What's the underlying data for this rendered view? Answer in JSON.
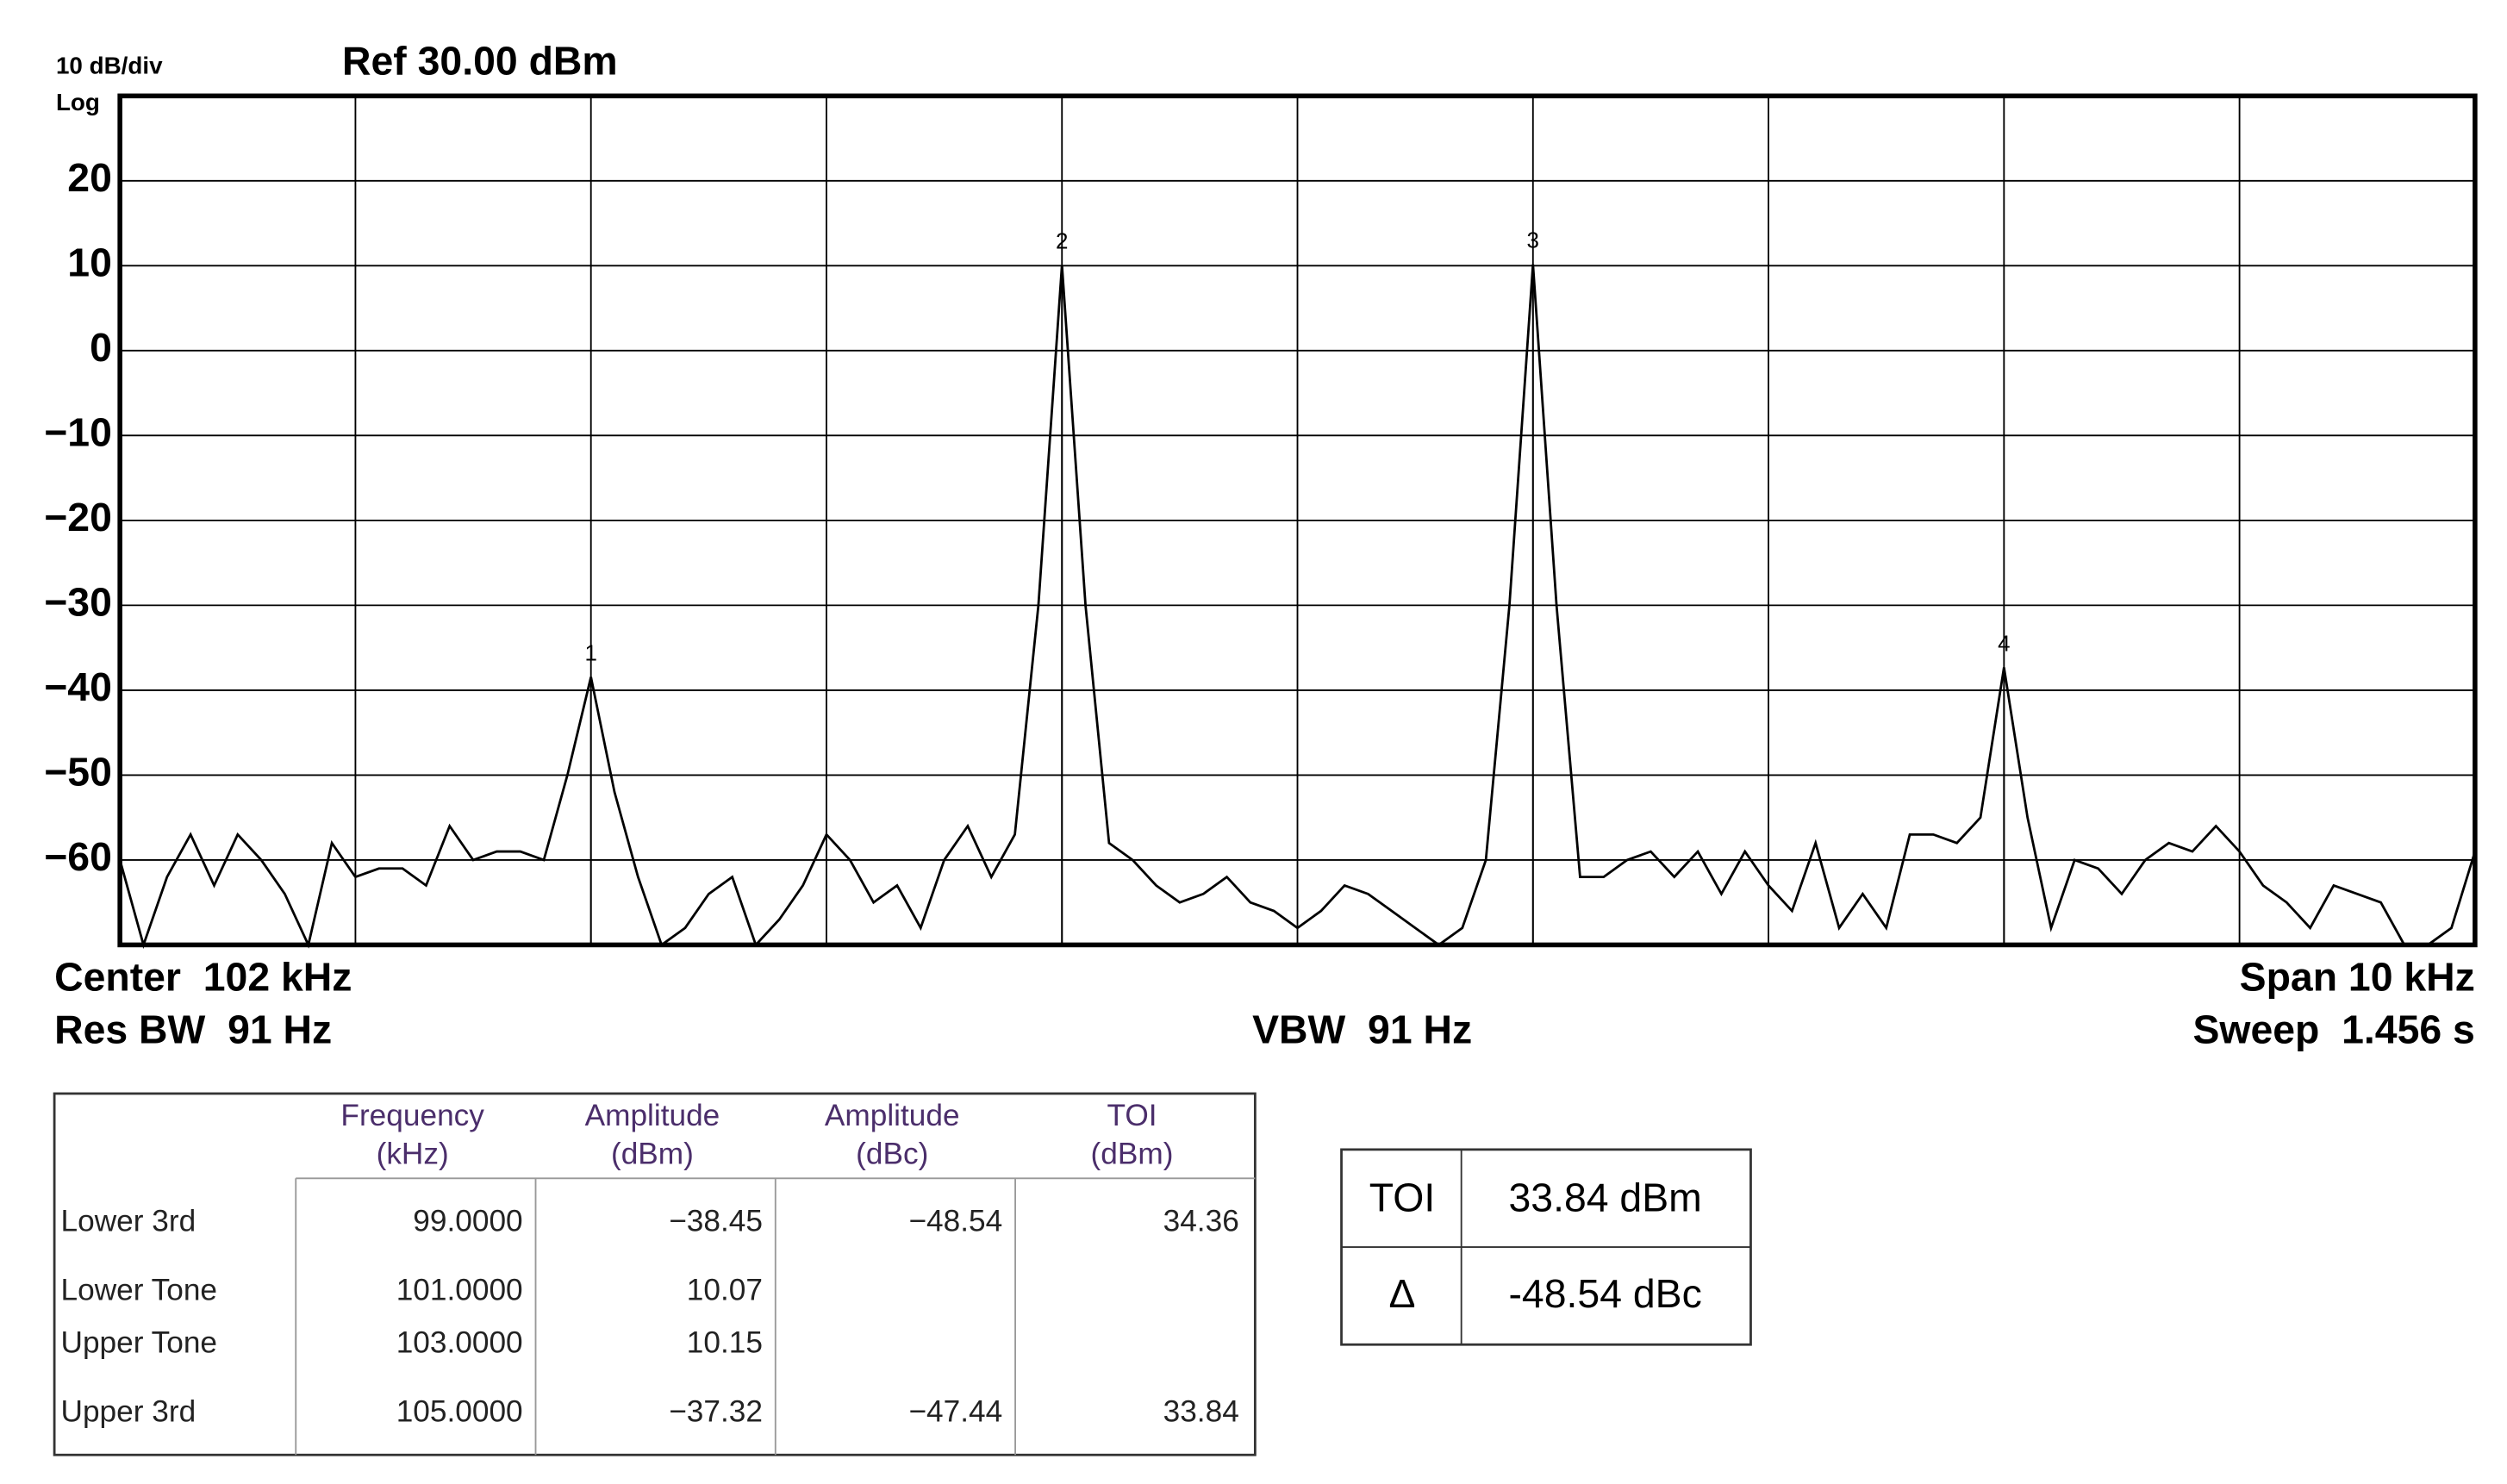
{
  "chart_data": {
    "type": "line",
    "scale_label": "10 dB/div",
    "scale_type": "Log",
    "ref_level": "Ref 30.00 dBm",
    "ylim": [
      -70,
      30
    ],
    "yticks": [
      {
        "value": 20,
        "label": "20"
      },
      {
        "value": 10,
        "label": "10"
      },
      {
        "value": 0,
        "label": "0"
      },
      {
        "value": -10,
        "label": "−10"
      },
      {
        "value": -20,
        "label": "−20"
      },
      {
        "value": -30,
        "label": "−30"
      },
      {
        "value": -40,
        "label": "−40"
      },
      {
        "value": -50,
        "label": "−50"
      },
      {
        "value": -60,
        "label": "−60"
      }
    ],
    "xlim": [
      97,
      107
    ],
    "xgrid": [
      98,
      99,
      100,
      101,
      102,
      103,
      104,
      105,
      106
    ],
    "grid": true,
    "color": "#000000",
    "x": [
      97.0,
      97.1,
      97.2,
      97.3,
      97.4,
      97.5,
      97.6,
      97.7,
      97.8,
      97.9,
      98.0,
      98.1,
      98.2,
      98.3,
      98.4,
      98.5,
      98.6,
      98.7,
      98.8,
      98.9,
      99.0,
      99.1,
      99.2,
      99.3,
      99.4,
      99.5,
      99.6,
      99.7,
      99.8,
      99.9,
      100.0,
      100.1,
      100.2,
      100.3,
      100.4,
      100.5,
      100.6,
      100.7,
      100.8,
      100.9,
      101.0,
      101.1,
      101.2,
      101.3,
      101.4,
      101.5,
      101.6,
      101.7,
      101.8,
      101.9,
      102.0,
      102.1,
      102.2,
      102.3,
      102.4,
      102.5,
      102.6,
      102.7,
      102.8,
      102.9,
      103.0,
      103.1,
      103.2,
      103.3,
      103.4,
      103.5,
      103.6,
      103.7,
      103.8,
      103.9,
      104.0,
      104.1,
      104.2,
      104.3,
      104.4,
      104.5,
      104.6,
      104.7,
      104.8,
      104.9,
      105.0,
      105.1,
      105.2,
      105.3,
      105.4,
      105.5,
      105.6,
      105.7,
      105.8,
      105.9,
      106.0,
      106.1,
      106.2,
      106.3,
      106.4,
      106.5,
      106.6,
      106.7,
      106.8,
      106.9,
      107.0
    ],
    "values": [
      -60,
      -70,
      -62,
      -57,
      -63,
      -57,
      -60,
      -64,
      -70,
      -58,
      -62,
      -61,
      -61,
      -63,
      -56,
      -60,
      -59,
      -59,
      -60,
      -50,
      -38.45,
      -52,
      -62,
      -70,
      -68,
      -64,
      -62,
      -70,
      -67,
      -63,
      -57,
      -60,
      -65,
      -63,
      -68,
      -60,
      -56,
      -62,
      -57,
      -30,
      10.07,
      -30,
      -58,
      -60,
      -63,
      -65,
      -64,
      -62,
      -65,
      -66,
      -68,
      -66,
      -63,
      -64,
      -66,
      -68,
      -70,
      -68,
      -60,
      -30,
      10.15,
      -30,
      -62,
      -62,
      -60,
      -59,
      -62,
      -59,
      -64,
      -59,
      -63,
      -66,
      -58,
      -68,
      -64,
      -68,
      -57,
      -57,
      -58,
      -55,
      -37.32,
      -55,
      -68,
      -60,
      -61,
      -64,
      -60,
      -58,
      -59,
      -56,
      -59,
      -63,
      -65,
      -68,
      -63,
      -64,
      -65,
      -70,
      -70,
      -68,
      -59
    ],
    "markers": [
      {
        "label": "1",
        "x": 99,
        "value": -38.45
      },
      {
        "label": "2",
        "x": 101,
        "value": 10.07
      },
      {
        "label": "3",
        "x": 103,
        "value": 10.15
      },
      {
        "label": "4",
        "x": 105,
        "value": -37.32
      }
    ],
    "center": "Center  102 kHz",
    "span": "Span 10 kHz",
    "res_bw": "Res BW  91 Hz",
    "vbw": "VBW  91 Hz",
    "sweep": "Sweep  1.456 s"
  },
  "table": {
    "headers": [
      [
        "Frequency",
        "(kHz)"
      ],
      [
        "Amplitude",
        "(dBm)"
      ],
      [
        "Amplitude",
        "(dBc)"
      ],
      [
        "TOI",
        "(dBm)"
      ]
    ],
    "rows": [
      [
        "Lower 3rd",
        "99.0000",
        "−38.45",
        "−48.54",
        "34.36"
      ],
      [
        "Lower Tone",
        "101.0000",
        "10.07"
      ],
      [
        "Upper Tone",
        "103.0000",
        "10.15"
      ],
      [
        "Upper 3rd",
        "105.0000",
        "−37.32",
        "−47.44",
        "33.84"
      ]
    ]
  },
  "summary": {
    "rows": [
      [
        "TOI",
        "33.84 dBm"
      ],
      [
        "Δ",
        "-48.54 dBc"
      ]
    ]
  }
}
